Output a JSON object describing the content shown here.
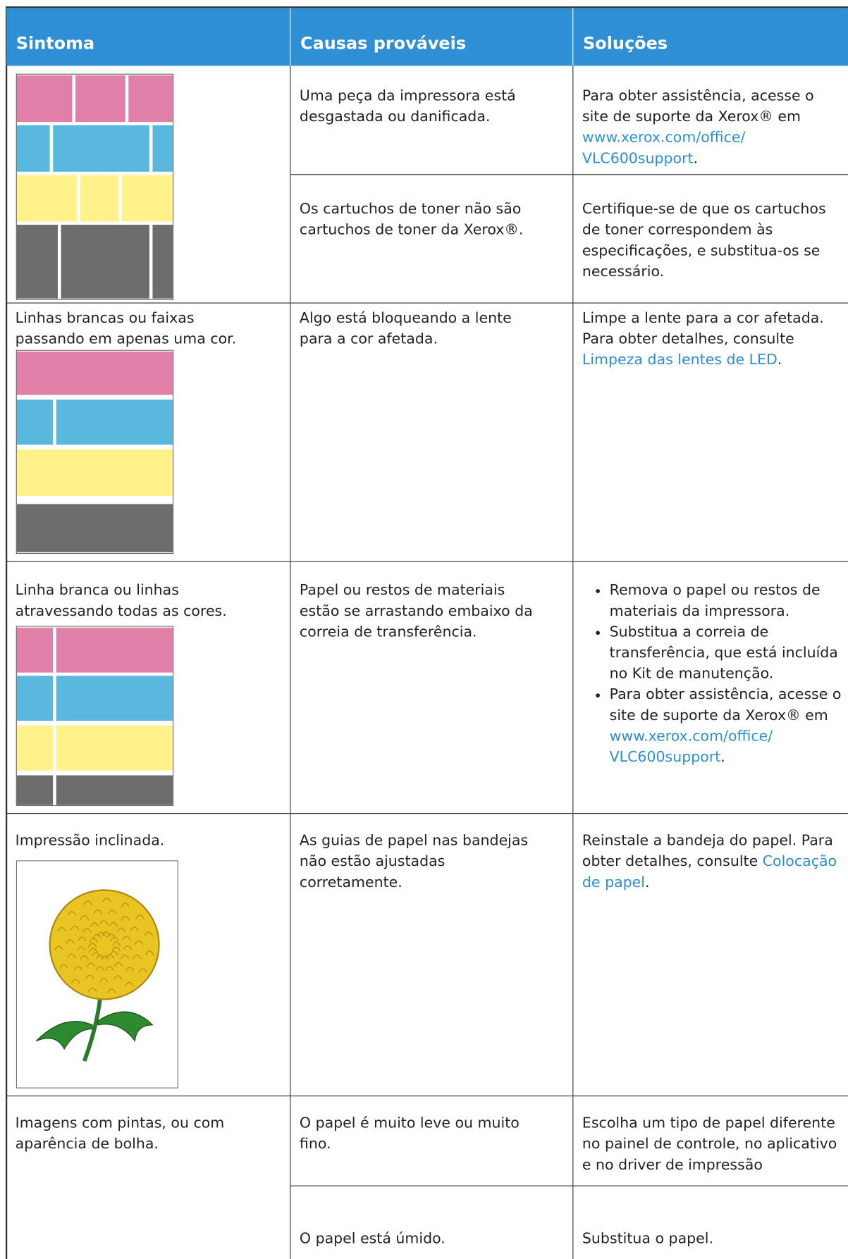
{
  "header": {
    "symptom": "Sintoma",
    "causes": "Causas prováveis",
    "solutions": "Soluções"
  },
  "rows": [
    {
      "items": [
        {
          "cause": "Uma peça da impressora está desgastada ou danificada.",
          "solution": {
            "text": "Para obter assistência, acesse o site de suporte da Xerox® em",
            "link": [
              "www.xerox.com/office/",
              "VLC600support"
            ],
            "end": "."
          }
        },
        {
          "cause": "Os cartuchos de toner não são cartuchos de toner da Xerox®.",
          "solution": {
            "text": "Certifique-se de que os cartuchos de toner correspondem às especificações, e substitua-os se necessário."
          }
        }
      ]
    },
    {
      "symptom": "Linhas brancas ou faixas passando em apenas uma cor.",
      "items": [
        {
          "cause": "Algo está bloqueando a lente para a cor afetada.",
          "solution": {
            "text": "Limpe a lente para a cor afetada. Para obter detalhes, consulte",
            "link": [
              "Limpeza das lentes de LED"
            ],
            "end": "."
          }
        }
      ]
    },
    {
      "symptom": "Linha branca ou linhas atravessando todas as cores.",
      "items": [
        {
          "cause": "Papel ou restos de materiais estão se arrastando embaixo da correia de transferência.",
          "solution": [
            {
              "text": "Remova o papel ou restos de materiais da impressora."
            },
            {
              "text": "Substitua a correia de transferência, que está incluída no Kit de manutenção."
            },
            {
              "text": "Para obter assistência, acesse o site de suporte da Xerox® em",
              "link": [
                "www.xerox.com/office/",
                "VLC600support"
              ],
              "end": "."
            }
          ]
        }
      ]
    },
    {
      "symptom": "Impressão inclinada.",
      "items": [
        {
          "cause": "As guias de papel nas bandejas não estão ajustadas corretamente.",
          "solution": {
            "text": "Reinstale a bandeja do papel. Para obter detalhes, consulte",
            "link": [
              "Colocação de papel"
            ],
            "end": "."
          }
        }
      ]
    },
    {
      "symptom": "Imagens com pintas, ou com aparência de bolha.",
      "items": [
        {
          "cause": "O papel é muito leve ou muito fino.",
          "solution": {
            "text": "Escolha um tipo de papel diferente no painel de controle, no aplicativo e no driver de impressão"
          }
        },
        {
          "cause": "O papel está úmido.",
          "solution": {
            "text": "Substitua o papel."
          }
        }
      ]
    }
  ]
}
